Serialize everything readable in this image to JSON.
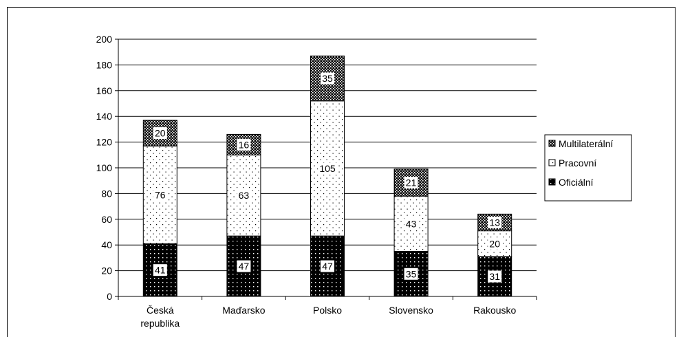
{
  "chart_data": {
    "type": "bar",
    "stacked": true,
    "categories": [
      "Česká republika",
      "Maďarsko",
      "Polsko",
      "Slovensko",
      "Rakousko"
    ],
    "series": [
      {
        "name": "Oficiální",
        "values": [
          41,
          47,
          47,
          35,
          31
        ],
        "pattern": "dots-on-black"
      },
      {
        "name": "Pracovní",
        "values": [
          76,
          63,
          105,
          43,
          20
        ],
        "pattern": "dots-on-white"
      },
      {
        "name": "Multilaterální",
        "values": [
          20,
          16,
          35,
          21,
          13
        ],
        "pattern": "dense-checker"
      }
    ],
    "legend_order": [
      "Multilaterální",
      "Pracovní",
      "Oficiální"
    ],
    "ylim": [
      0,
      200
    ],
    "yticks": [
      0,
      20,
      40,
      60,
      80,
      100,
      120,
      140,
      160,
      180,
      200
    ],
    "grid": true,
    "legend_position": "right",
    "title": "",
    "xlabel": "",
    "ylabel": ""
  },
  "colors": {
    "axis": "#000000",
    "grid": "#000000",
    "bar_dark": "#000000",
    "bar_light": "#ffffff"
  }
}
